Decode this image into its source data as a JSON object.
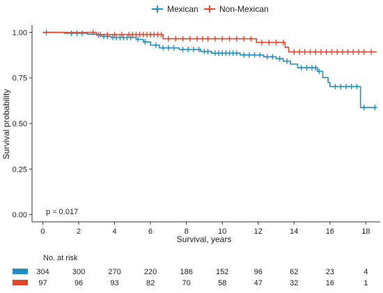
{
  "chart_data": {
    "type": "line",
    "subtype": "kaplan-meier",
    "xlabel": "Survival, years",
    "ylabel": "Survival probability",
    "xlim": [
      -0.6,
      18.8
    ],
    "ylim": [
      -0.04,
      1.04
    ],
    "x_ticks": [
      0,
      2,
      4,
      6,
      8,
      10,
      12,
      14,
      16,
      18
    ],
    "x_tick_labels": [
      "0",
      "2",
      "4",
      "6",
      "8",
      "10",
      "12",
      "14",
      "16",
      "18"
    ],
    "y_ticks": [
      0,
      0.25,
      0.5,
      0.75,
      1
    ],
    "y_tick_labels": [
      "0.00",
      "0.25",
      "0.50",
      "0.75",
      "1.00"
    ],
    "grid": false,
    "legend_placement": "top",
    "annotation": "p = 0.017",
    "series": [
      {
        "name": "Mexican",
        "color": "#1f8fc4",
        "steps": [
          [
            0,
            1.0
          ],
          [
            1.2,
            0.995
          ],
          [
            2.5,
            0.99
          ],
          [
            3.0,
            0.985
          ],
          [
            3.3,
            0.978
          ],
          [
            3.8,
            0.972
          ],
          [
            5.2,
            0.962
          ],
          [
            5.6,
            0.948
          ],
          [
            6.0,
            0.93
          ],
          [
            6.5,
            0.915
          ],
          [
            7.6,
            0.906
          ],
          [
            8.8,
            0.895
          ],
          [
            9.4,
            0.886
          ],
          [
            11.0,
            0.876
          ],
          [
            12.3,
            0.866
          ],
          [
            13.0,
            0.856
          ],
          [
            13.4,
            0.842
          ],
          [
            13.8,
            0.826
          ],
          [
            14.2,
            0.806
          ],
          [
            15.3,
            0.786
          ],
          [
            15.6,
            0.752
          ],
          [
            15.9,
            0.725
          ],
          [
            16.0,
            0.703
          ],
          [
            17.7,
            0.588
          ],
          [
            18.6,
            0.588
          ]
        ],
        "censor_x": [
          0.2,
          1.6,
          1.9,
          2.2,
          3.1,
          3.4,
          3.6,
          3.9,
          4.1,
          4.3,
          4.5,
          4.7,
          4.9,
          5.3,
          5.7,
          6.3,
          6.7,
          7.0,
          7.3,
          7.8,
          8.1,
          8.4,
          8.7,
          9.0,
          9.2,
          9.6,
          9.8,
          10.0,
          10.2,
          10.4,
          10.6,
          10.8,
          11.2,
          11.5,
          11.8,
          12.1,
          12.5,
          12.8,
          13.2,
          13.6,
          14.4,
          14.7,
          15.0,
          15.2,
          15.4,
          16.3,
          16.6,
          16.9,
          17.2,
          17.5,
          17.9,
          18.5
        ],
        "at_risk": [
          304,
          300,
          270,
          220,
          186,
          152,
          96,
          62,
          23,
          4
        ]
      },
      {
        "name": "Non-Mexican",
        "color": "#e0472c",
        "steps": [
          [
            0,
            1.0
          ],
          [
            3.0,
            0.988
          ],
          [
            6.7,
            0.965
          ],
          [
            11.9,
            0.945
          ],
          [
            13.5,
            0.918
          ],
          [
            13.7,
            0.893
          ],
          [
            18.6,
            0.893
          ]
        ],
        "censor_x": [
          2.8,
          3.2,
          3.6,
          4.0,
          4.4,
          4.8,
          5.0,
          5.2,
          5.4,
          5.6,
          5.8,
          6.0,
          6.2,
          6.4,
          6.6,
          7.0,
          7.4,
          7.8,
          8.2,
          8.6,
          8.9,
          9.2,
          9.6,
          10.0,
          10.4,
          10.8,
          11.2,
          11.6,
          12.2,
          12.6,
          13.0,
          13.4,
          14.0,
          14.3,
          14.6,
          14.9,
          15.2,
          15.5,
          15.8,
          16.1,
          16.4,
          16.7,
          17.0,
          17.3,
          17.6,
          17.9,
          18.3
        ],
        "at_risk": [
          97,
          96,
          93,
          82,
          70,
          58,
          47,
          32,
          16,
          1
        ]
      }
    ],
    "risk_table": {
      "title": "No. at risk",
      "times": [
        0,
        2,
        4,
        6,
        8,
        10,
        12,
        14,
        16,
        18
      ]
    }
  }
}
